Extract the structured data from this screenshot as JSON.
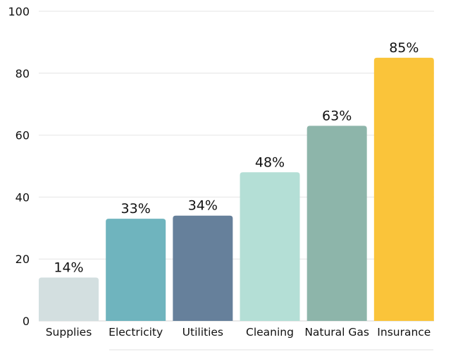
{
  "chart_data": {
    "type": "bar",
    "title": "",
    "xlabel": "",
    "ylabel": "",
    "categories": [
      "Supplies",
      "Electricity",
      "Utilities",
      "Cleaning",
      "Natural Gas",
      "Insurance"
    ],
    "values": [
      14,
      33,
      34,
      48,
      63,
      85
    ],
    "data_labels": [
      "14%",
      "33%",
      "34%",
      "48%",
      "63%",
      "85%"
    ],
    "colors": [
      "#d3dfe0",
      "#6fb4be",
      "#66809b",
      "#b4dfd6",
      "#8db5aa",
      "#fac43a"
    ],
    "ylim": [
      0,
      100
    ],
    "yticks": [
      0,
      20,
      40,
      60,
      80,
      100
    ],
    "grid": true,
    "legend": "none"
  }
}
